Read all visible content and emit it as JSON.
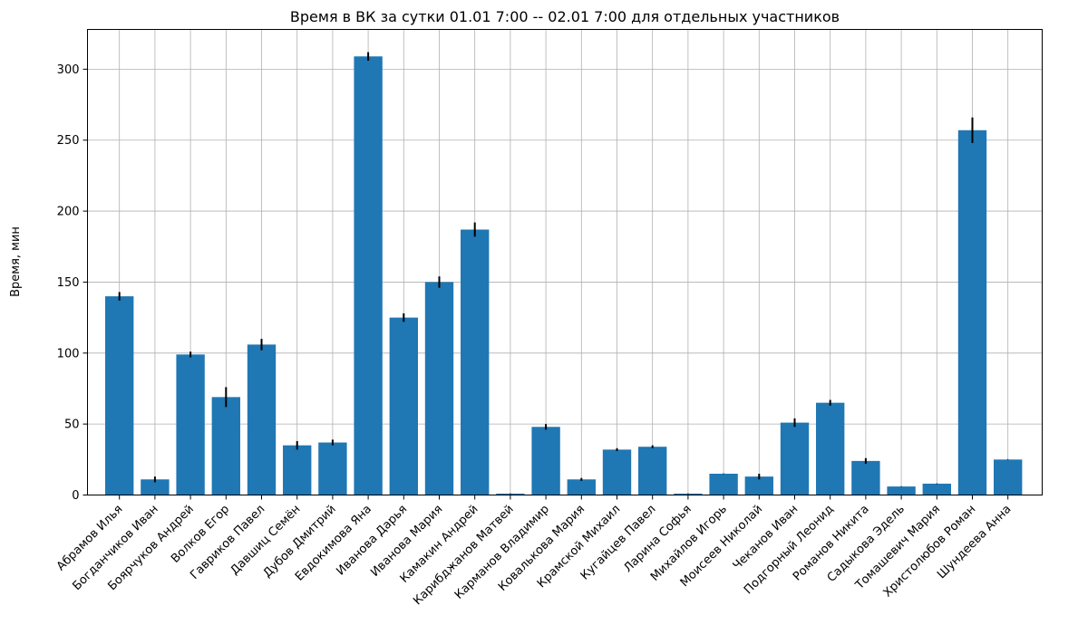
{
  "chart_data": {
    "type": "bar",
    "title": "Время в ВК за сутки 01.01 7:00 -- 02.01 7:00 для отдельных участников",
    "xlabel": "",
    "ylabel": "Время, мин",
    "ylim": [
      0,
      328
    ],
    "yticks": [
      0,
      50,
      100,
      150,
      200,
      250,
      300
    ],
    "grid": true,
    "bar_color": "#1f77b4",
    "error_color": "#000000",
    "categories": [
      "Абрамов Илья",
      "Богданчиков Иван",
      "Боярчуков Андрей",
      "Волков Егор",
      "Гавриков Павел",
      "Давшиц Семён",
      "Дубов Дмитрий",
      "Евдокимова Яна",
      "Иванова Дарья",
      "Иванова Мария",
      "Камакин Андрей",
      "Карибджанов Матвей",
      "Карманов Владимир",
      "Ковалькова Мария",
      "Крамской Михаил",
      "Кугайцев Павел",
      "Ларина Софья",
      "Михайлов Игорь",
      "Моисеев Николай",
      "Чеканов Иван",
      "Подгорный Леонид",
      "Романов Никита",
      "Садыкова Эдель",
      "Томашевич Мария",
      "Христолюбов Роман",
      "Шундеева Анна"
    ],
    "values": [
      140,
      11,
      99,
      69,
      106,
      35,
      37,
      309,
      125,
      150,
      187,
      1,
      48,
      11,
      32,
      34,
      1,
      15,
      13,
      51,
      65,
      24,
      6,
      8,
      257,
      25
    ],
    "errors": [
      3,
      2,
      2,
      7,
      4,
      3,
      2,
      3,
      3,
      4,
      5,
      0,
      2,
      1,
      1,
      1,
      0,
      0,
      2,
      3,
      2,
      2,
      0,
      0,
      9,
      0
    ]
  }
}
